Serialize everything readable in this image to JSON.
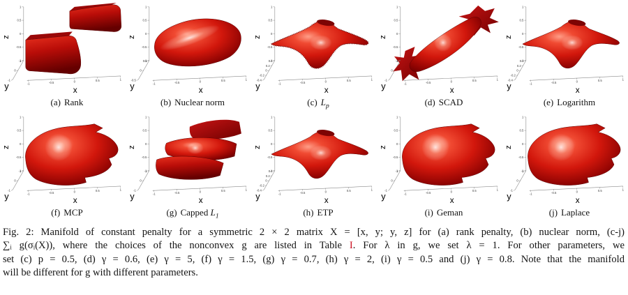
{
  "figure": {
    "panels": [
      {
        "id": "a",
        "label": "(a)",
        "title_pre": "Rank",
        "title_it": "",
        "title_sub": "",
        "shape": "rank",
        "x_label": "x",
        "y_label": "y",
        "z_label": "z",
        "z_ticks": [
          "1",
          "0.5",
          "0",
          "-0.5",
          "-1"
        ],
        "x_ticks": [
          "-1",
          "-0.5",
          "0",
          "0.5",
          "1"
        ],
        "y_ticks": [
          "1",
          "0",
          "-1"
        ]
      },
      {
        "id": "b",
        "label": "(b)",
        "title_pre": "Nuclear norm",
        "title_it": "",
        "title_sub": "",
        "shape": "nuclear",
        "x_label": "x",
        "y_label": "y",
        "z_label": "z",
        "z_ticks": [
          "1",
          "0.5",
          "0",
          "-0.5",
          "-1"
        ],
        "x_ticks": [
          "-1",
          "-0.5",
          "0",
          "0.5",
          "1"
        ],
        "y_ticks": [
          "0.5",
          "0",
          "-0.5"
        ]
      },
      {
        "id": "c",
        "label": "(c)",
        "title_pre": "",
        "title_it": "L",
        "title_sub": "p",
        "shape": "saddleFuzzy",
        "x_label": "x",
        "y_label": "y",
        "z_label": "z",
        "z_ticks": [
          "1",
          "0.5",
          "0",
          "-0.5",
          "-1"
        ],
        "x_ticks": [
          "-1",
          "-0.5",
          "0",
          "0.5",
          "1"
        ],
        "y_ticks": [
          "0.4",
          "0.2",
          "0",
          "-0.2",
          "-0.4"
        ]
      },
      {
        "id": "d",
        "label": "(d)",
        "title_pre": "SCAD",
        "title_it": "",
        "title_sub": "",
        "shape": "scad",
        "x_label": "x",
        "y_label": "y",
        "z_label": "z",
        "z_ticks": [
          "1",
          "0.5",
          "0",
          "-0.5",
          "-1"
        ],
        "x_ticks": [
          "-1",
          "-0.5",
          "0",
          "0.5",
          "1"
        ],
        "y_ticks": [
          "1",
          "0",
          "-1"
        ]
      },
      {
        "id": "e",
        "label": "(e)",
        "title_pre": "Logarithm",
        "title_it": "",
        "title_sub": "",
        "shape": "saddle",
        "x_label": "x",
        "y_label": "y",
        "z_label": "z",
        "z_ticks": [
          "1",
          "0.5",
          "0",
          "-0.5",
          "-1"
        ],
        "x_ticks": [
          "-1",
          "-0.5",
          "0",
          "0.5",
          "1"
        ],
        "y_ticks": [
          "0.4",
          "0.2",
          "0",
          "-0.2",
          "-0.4"
        ]
      },
      {
        "id": "f",
        "label": "(f)",
        "title_pre": "MCP",
        "title_it": "",
        "title_sub": "",
        "shape": "blob",
        "x_label": "x",
        "y_label": "y",
        "z_label": "z",
        "z_ticks": [
          "1",
          "0.5",
          "0",
          "-0.5",
          "-1"
        ],
        "x_ticks": [
          "-1",
          "-0.5",
          "0",
          "0.5",
          "1"
        ],
        "y_ticks": [
          "1",
          "0",
          "-1"
        ]
      },
      {
        "id": "g",
        "label": "(g)",
        "title_pre": "Capped ",
        "title_it": "L",
        "title_sub": "1",
        "shape": "capped",
        "x_label": "x",
        "y_label": "y",
        "z_label": "z",
        "z_ticks": [
          "1",
          "0.5",
          "0",
          "-0.5",
          "-1"
        ],
        "x_ticks": [
          "-1",
          "-0.5",
          "0",
          "0.5",
          "1"
        ],
        "y_ticks": [
          "1",
          "0",
          "-1"
        ]
      },
      {
        "id": "h",
        "label": "(h)",
        "title_pre": "ETP",
        "title_it": "",
        "title_sub": "",
        "shape": "saddle",
        "x_label": "x",
        "y_label": "y",
        "z_label": "z",
        "z_ticks": [
          "1",
          "0.5",
          "0",
          "-0.5",
          "-1"
        ],
        "x_ticks": [
          "-1",
          "-0.5",
          "0",
          "0.5",
          "1"
        ],
        "y_ticks": [
          "0.4",
          "0.2",
          "0",
          "-0.2",
          "-0.4"
        ]
      },
      {
        "id": "i",
        "label": "(i)",
        "title_pre": "Geman",
        "title_it": "",
        "title_sub": "",
        "shape": "blob",
        "x_label": "x",
        "y_label": "y",
        "z_label": "z",
        "z_ticks": [
          "1",
          "0.5",
          "0",
          "-0.5",
          "-1"
        ],
        "x_ticks": [
          "-1",
          "-0.5",
          "0",
          "0.5",
          "1"
        ],
        "y_ticks": [
          "1",
          "0",
          "-1"
        ]
      },
      {
        "id": "j",
        "label": "(j)",
        "title_pre": "Laplace",
        "title_it": "",
        "title_sub": "",
        "shape": "blob",
        "x_label": "x",
        "y_label": "y",
        "z_label": "z",
        "z_ticks": [
          "1",
          "0.5",
          "0",
          "-0.5",
          "-1"
        ],
        "x_ticks": [
          "-1",
          "-0.5",
          "0",
          "0.5",
          "1"
        ],
        "y_ticks": [
          "1",
          "0",
          "-1"
        ]
      }
    ]
  },
  "caption": {
    "line1": "Fig. 2: Manifold of constant penalty for a symmetric 2 × 2 matrix X = [x, y; y, z] for (a) rank penalty, (b) nuclear norm, (c-j)",
    "line2_pre": "∑ᵢ g(σᵢ(X)), where the choices of the nonconvex g are listed in Table ",
    "line2_link": "I",
    "line2_post": ". For λ in g, we set λ = 1. For other parameters, we",
    "line3": "set (c) p = 0.5, (d) γ = 0.6, (e) γ = 5, (f) γ = 1.5, (g) γ = 0.7, (h) γ = 2, (i) γ = 0.5 and (j) γ = 0.8. Note that the manifold",
    "line4": "will be different for g with different parameters."
  },
  "colors": {
    "surface_bright_red": "#d81e12",
    "surface_dark_red": "#610000",
    "surface_highlight": "#ff9d87",
    "table_link_red": "#cc1122",
    "text": "#141414"
  }
}
